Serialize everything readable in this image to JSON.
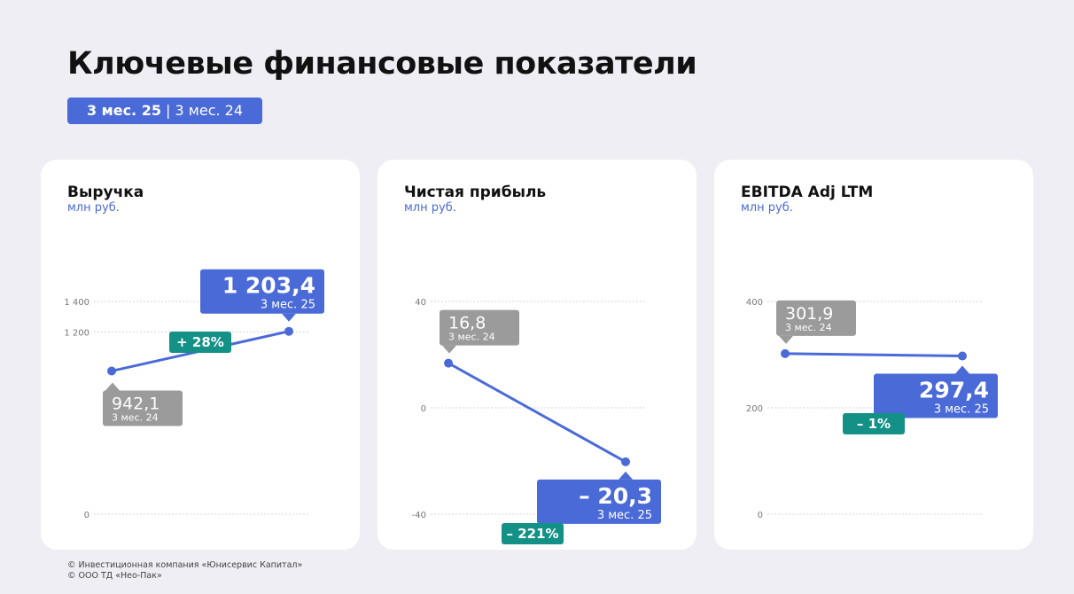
{
  "page": {
    "title": "Ключевые финансовые показатели",
    "period_current": "3 мес. 25",
    "period_separator": " | ",
    "period_previous": "3 мес. 24"
  },
  "colors": {
    "accent": "#4a6ad8",
    "gray_label": "#9b9b9b",
    "change": "#139186",
    "background": "#eeeef4",
    "card": "#ffffff"
  },
  "chart_data": [
    {
      "type": "line",
      "title": "Выручка",
      "ylabel": "млн руб.",
      "ylim": [
        0,
        1400
      ],
      "y_ticks": [
        0,
        1200,
        1400
      ],
      "y_tick_labels": [
        "0",
        "1 200",
        "1 400"
      ],
      "grid": true,
      "categories": [
        "3 мес. 24",
        "3 мес. 25"
      ],
      "values": [
        942.1,
        1203.4
      ],
      "value_labels": [
        "942,1",
        "1 203,4"
      ],
      "change_label": "+ 28%"
    },
    {
      "type": "line",
      "title": "Чистая прибыль",
      "ylabel": "млн руб.",
      "ylim": [
        -40,
        40
      ],
      "y_ticks": [
        -40,
        0,
        40
      ],
      "y_tick_labels": [
        "-40",
        "0",
        "40"
      ],
      "grid": true,
      "categories": [
        "3 мес. 24",
        "3 мес. 25"
      ],
      "values": [
        16.8,
        -20.3
      ],
      "value_labels": [
        "16,8",
        "– 20,3"
      ],
      "change_label": "– 221%"
    },
    {
      "type": "line",
      "title": "EBITDA Adj LTM",
      "ylabel": "млн руб.",
      "ylim": [
        0,
        400
      ],
      "y_ticks": [
        0,
        200,
        400
      ],
      "y_tick_labels": [
        "0",
        "200",
        "400"
      ],
      "grid": true,
      "categories": [
        "3 мес. 24",
        "3 мес. 25"
      ],
      "values": [
        301.9,
        297.4
      ],
      "value_labels": [
        "301,9",
        "297,4"
      ],
      "change_label": "– 1%"
    }
  ],
  "footer": {
    "line1": "© Инвестиционная компания «Юнисервис Капитал»",
    "line2": "© ООО ТД «Нео-Пак»"
  }
}
